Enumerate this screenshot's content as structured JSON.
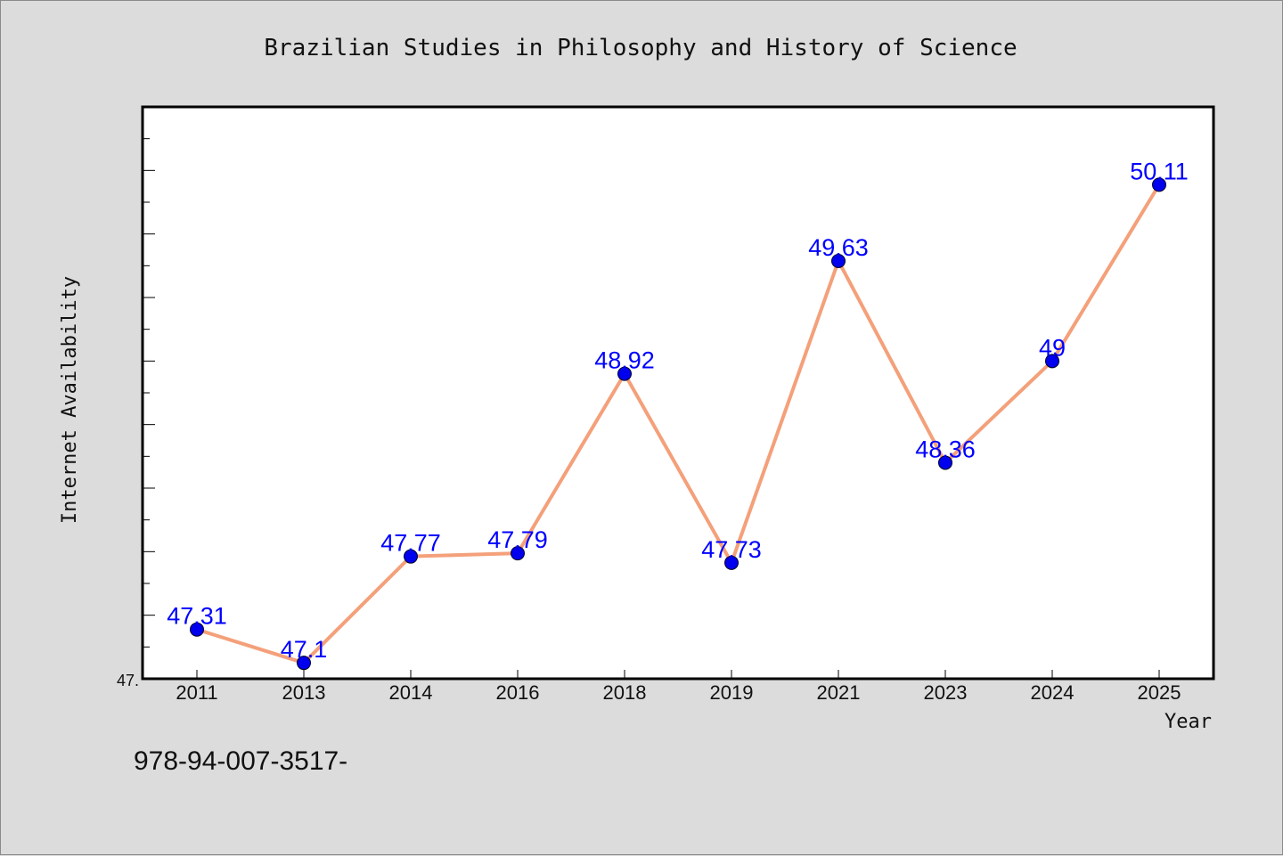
{
  "chart_data": {
    "type": "line",
    "title": "Brazilian Studies in Philosophy and History of Science",
    "xlabel": "Year",
    "ylabel": "Internet Availability",
    "categories": [
      "2011",
      "2013",
      "2014",
      "2016",
      "2018",
      "2019",
      "2021",
      "2023",
      "2024",
      "2025"
    ],
    "series": [
      {
        "values": [
          47.31,
          47.1,
          47.77,
          47.79,
          48.92,
          47.73,
          49.63,
          48.36,
          49,
          50.11
        ],
        "data_labels": [
          "47.31",
          "47.1",
          "47.77",
          "47.79",
          "48.92",
          "47.73",
          "49.63",
          "48.36",
          "49",
          "50.11"
        ]
      }
    ],
    "ylim": [
      47.0,
      50.6
    ],
    "y_tick_labels": [
      "47."
    ],
    "grid": false,
    "line_color": "#f4a07a",
    "marker_color": "#0000ee",
    "label_color": "#0000ff",
    "footnote": "978-94-007-3517-"
  }
}
